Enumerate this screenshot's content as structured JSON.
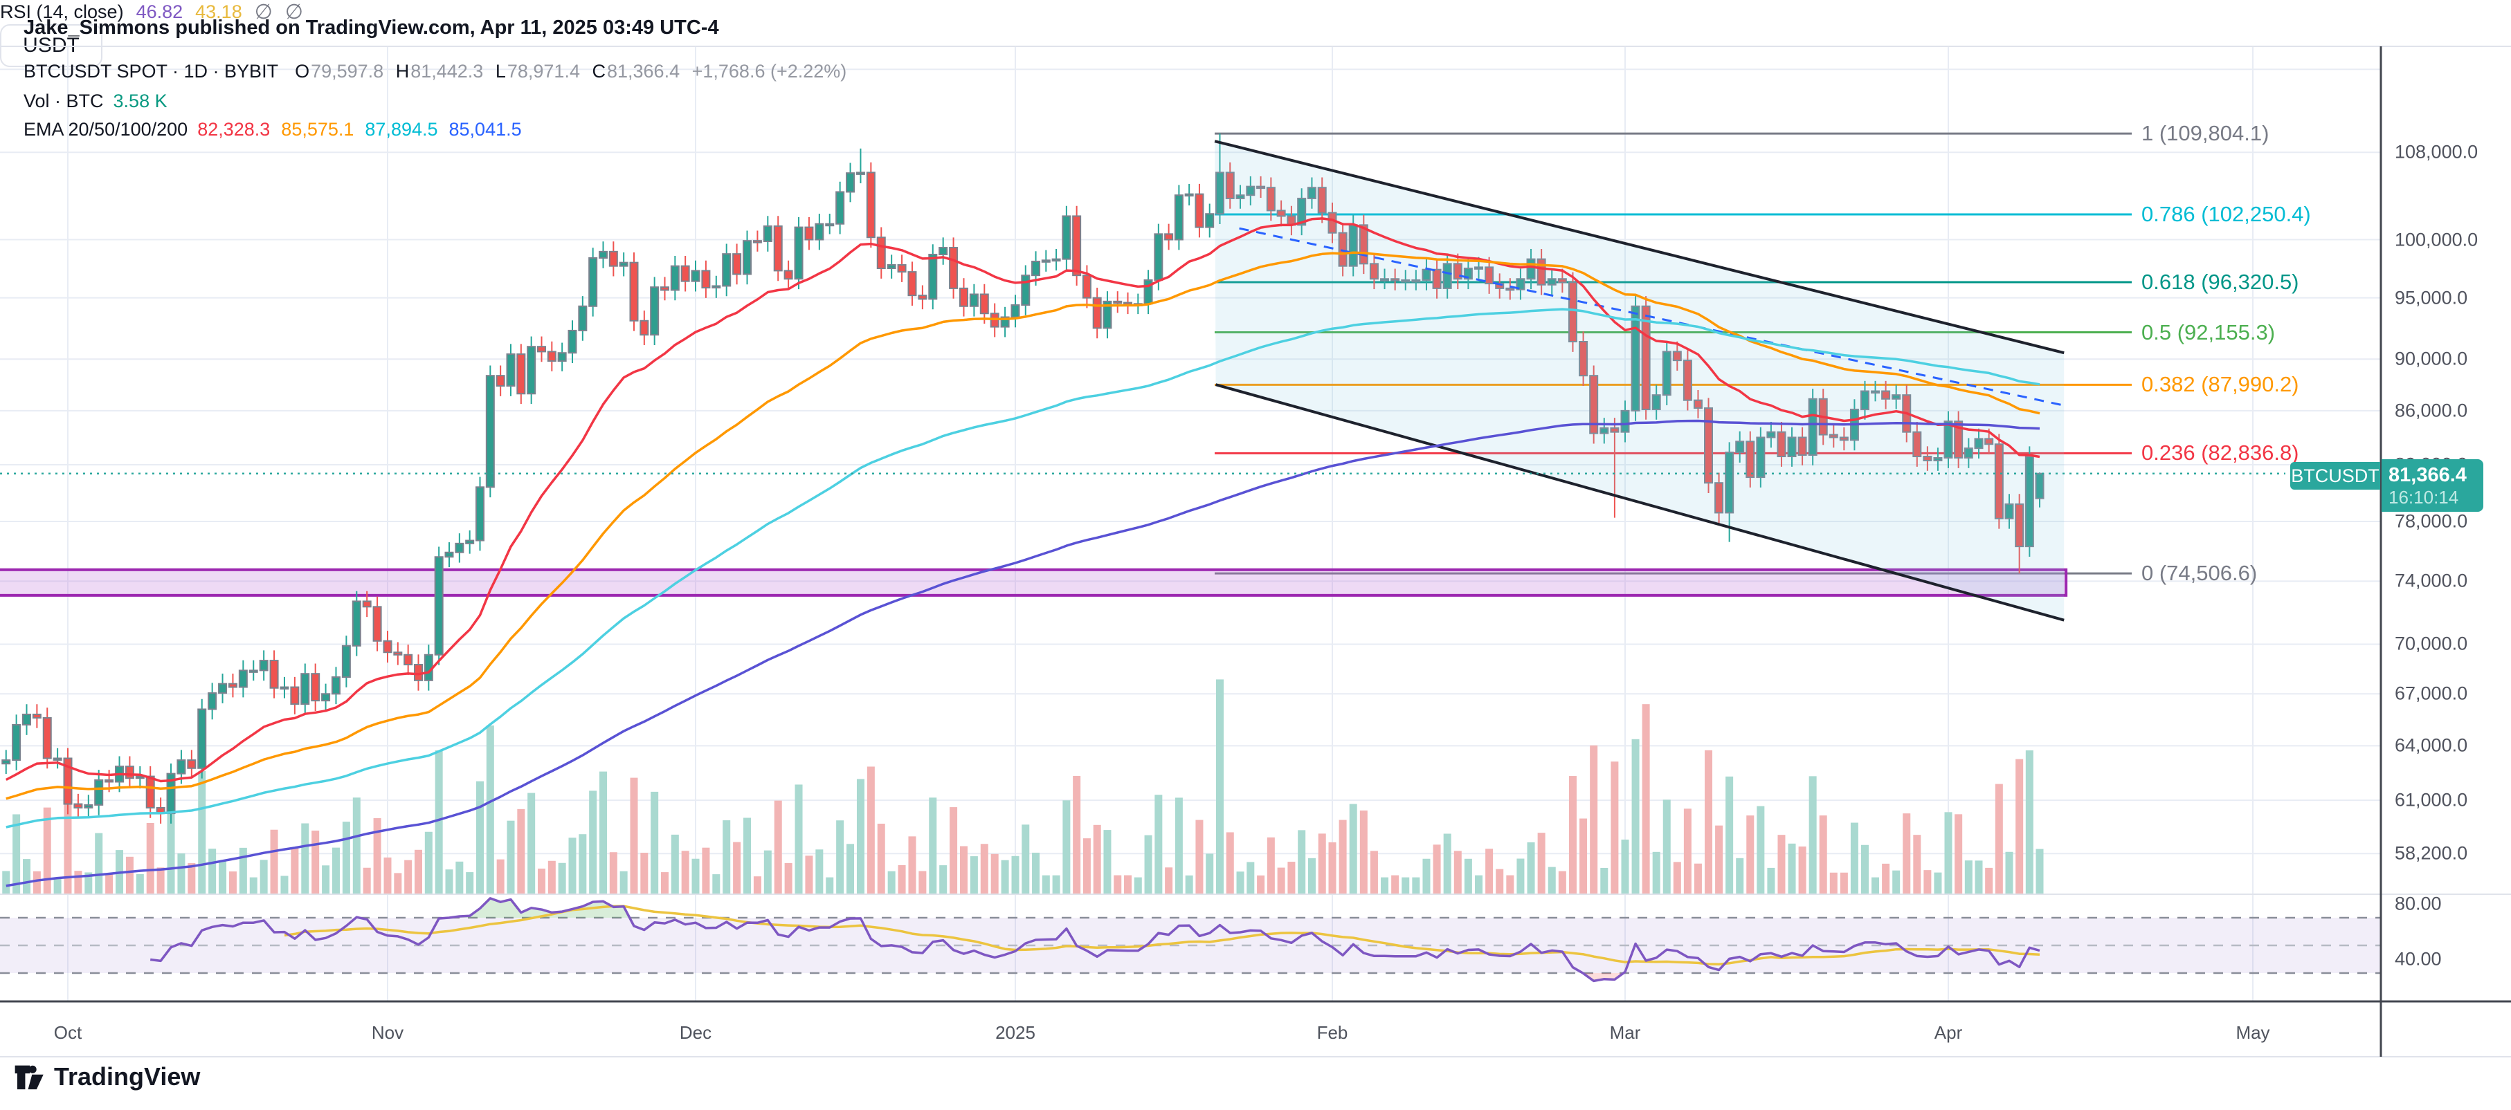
{
  "header": {
    "published_line": "Jake_Simmons published on TradingView.com, Apr 11, 2025 03:49 UTC-4"
  },
  "legend": {
    "symbol_line": "BTCUSDT SPOT · 1D · BYBIT",
    "ohlc": {
      "o_label": "O",
      "o": "79,597.8",
      "h_label": "H",
      "h": "81,442.3",
      "l_label": "L",
      "l": "78,971.4",
      "c_label": "C",
      "c": "81,366.4",
      "change": "+1,768.6 (+2.22%)"
    },
    "volume_label": "Vol · BTC",
    "volume_value": "3.58 K",
    "ema_label": "EMA 20/50/100/200",
    "ema_values": [
      {
        "text": "82,328.3",
        "color": "#f23645"
      },
      {
        "text": "85,575.1",
        "color": "#ff9800"
      },
      {
        "text": "87,894.5",
        "color": "#00bcd4"
      },
      {
        "text": "85,041.5",
        "color": "#2962ff"
      }
    ]
  },
  "rsi_legend": {
    "label": "RSI (14, close)",
    "value": "46.82",
    "ma_value": "43.18",
    "empty1": "∅",
    "empty2": "∅"
  },
  "price_badge": {
    "symbol": "BTCUSDT",
    "price": "81,366.4",
    "countdown": "16:10:14",
    "color": "#2aa79d"
  },
  "price_axis": {
    "currency": "USDT",
    "ticks": [
      {
        "label": "108,000.0",
        "p_k": 108
      },
      {
        "label": "100,000.0",
        "p_k": 100
      },
      {
        "label": "95,000.0",
        "p_k": 95
      },
      {
        "label": "90,000.0",
        "p_k": 90
      },
      {
        "label": "86,000.0",
        "p_k": 86
      },
      {
        "label": "82,000.0",
        "p_k": 82
      },
      {
        "label": "78,000.0",
        "p_k": 78
      },
      {
        "label": "74,000.0",
        "p_k": 74
      },
      {
        "label": "70,000.0",
        "p_k": 70
      },
      {
        "label": "67,000.0",
        "p_k": 67
      },
      {
        "label": "64,000.0",
        "p_k": 64
      },
      {
        "label": "61,000.0",
        "p_k": 61
      },
      {
        "label": "58,200.0",
        "p_k": 58.2
      }
    ],
    "unlabeled_grid_k": [
      116.2
    ],
    "rsi_ticks": [
      {
        "label": "80.00",
        "v": 80
      },
      {
        "label": "40.00",
        "v": 40
      }
    ]
  },
  "time_axis": {
    "labels": [
      {
        "label": "Oct",
        "d": 0
      },
      {
        "label": "Nov",
        "d": 31
      },
      {
        "label": "Dec",
        "d": 61
      },
      {
        "label": "2025",
        "d": 92
      },
      {
        "label": "Feb",
        "d": 123
      },
      {
        "label": "Mar",
        "d": 151
      },
      {
        "label": "Apr",
        "d": 182
      },
      {
        "label": "May",
        "d": 212
      }
    ]
  },
  "footer": {
    "brand": "TradingView"
  },
  "chart_data": {
    "type": "candlestick",
    "symbol": "BTCUSDT",
    "market": "SPOT",
    "interval": "1D",
    "exchange": "BYBIT",
    "scale": "log",
    "ohlc_current": {
      "open": 79597.8,
      "high": 81442.3,
      "low": 78971.4,
      "close": 81366.4,
      "change": 1768.6,
      "change_pct": 2.22
    },
    "style": {
      "up": "#2f9e8f",
      "down": "#ef5350",
      "border": "#7b828e",
      "wick_up": "#26a69a",
      "wick_down": "#ef5350",
      "vol_up": "#a9d9d0",
      "vol_down": "#f2b4b4"
    },
    "first_open_k": 63.0,
    "closes_k": [
      63.2,
      65.2,
      65.8,
      65.6,
      63.3,
      63.3,
      60.8,
      60.6,
      60.75,
      62.1,
      62.0,
      62.85,
      62.2,
      62.3,
      60.6,
      60.3,
      62.45,
      63.2,
      62.75,
      66.1,
      67.05,
      67.6,
      67.4,
      68.4,
      68.4,
      69.0,
      67.35,
      67.4,
      66.4,
      68.2,
      66.6,
      67.0,
      68.0,
      69.9,
      72.7,
      72.35,
      70.2,
      69.5,
      69.35,
      68.75,
      67.8,
      69.35,
      75.6,
      75.9,
      76.5,
      76.7,
      80.4,
      88.7,
      87.9,
      90.4,
      87.3,
      91.0,
      90.6,
      89.85,
      90.5,
      92.3,
      94.3,
      98.4,
      98.95,
      97.7,
      98.0,
      93.1,
      91.95,
      95.9,
      95.65,
      97.7,
      96.4,
      97.3,
      95.85,
      96.0,
      98.75,
      97.0,
      99.9,
      99.85,
      101.2,
      97.3,
      96.6,
      101.1,
      100.0,
      101.4,
      101.4,
      104.3,
      106.05,
      106.1,
      100.2,
      97.5,
      97.8,
      97.2,
      95.2,
      94.9,
      98.7,
      99.3,
      95.8,
      94.3,
      95.3,
      93.7,
      92.6,
      93.4,
      94.4,
      96.9,
      98.1,
      98.2,
      98.3,
      102.1,
      96.9,
      95.0,
      92.5,
      94.7,
      94.6,
      94.5,
      94.5,
      96.5,
      100.5,
      100.0,
      104.0,
      104.1,
      101.1,
      102.3,
      106.1,
      103.7,
      104.0,
      104.8,
      104.7,
      102.6,
      102.1,
      101.3,
      103.7,
      104.7,
      102.4,
      100.6,
      97.7,
      101.3,
      97.9,
      96.6,
      96.6,
      96.5,
      96.5,
      96.5,
      97.4,
      95.8,
      97.9,
      96.6,
      97.5,
      97.6,
      96.2,
      95.8,
      95.7,
      96.6,
      98.3,
      96.1,
      96.6,
      96.3,
      91.4,
      88.7,
      84.3,
      84.7,
      84.4,
      86.0,
      94.3,
      86.1,
      87.2,
      90.6,
      89.9,
      86.8,
      86.2,
      80.7,
      78.6,
      82.9,
      83.7,
      81.1,
      84.0,
      84.4,
      82.6,
      84.0,
      82.7,
      86.9,
      84.2,
      84.0,
      83.8,
      86.1,
      87.5,
      87.5,
      86.9,
      87.2,
      84.4,
      82.6,
      82.3,
      82.5,
      85.2,
      82.5,
      83.2,
      83.9,
      83.5,
      78.2,
      79.2,
      76.3,
      82.6,
      81.366
    ],
    "candle_overrides": {
      "83": {
        "h": 108.365
      },
      "118": {
        "h": 109.804
      },
      "156": {
        "l": 78.258
      },
      "167": {
        "l": 76.606
      },
      "195": {
        "l": 74.507
      },
      "197": {
        "o": 79.598,
        "h": 81.442,
        "l": 78.971
      }
    },
    "wick_pct": {
      "high": 0.009,
      "low": 0.009
    },
    "volume": {
      "base_k": 1.3,
      "impulse_k": 160,
      "current_k": 3.58,
      "overrides": {
        "42": 11.5,
        "47": 13.5,
        "58": 9.8,
        "83": 9.2,
        "118": 17.2,
        "154": 11.9,
        "156": 10.6,
        "158": 12.4,
        "167": 9.4,
        "193": 8.8,
        "195": 10.8,
        "196": 11.5,
        "197": 3.58
      }
    },
    "emas": [
      {
        "period": 20,
        "seed_k": 62.0,
        "color": "#f23645",
        "value": 82328.3
      },
      {
        "period": 50,
        "seed_k": 61.0,
        "color": "#ff9800",
        "value": 85575.1
      },
      {
        "period": 100,
        "seed_k": 59.5,
        "color": "#4dd0e1",
        "value": 87894.5
      },
      {
        "period": 200,
        "seed_k": 56.5,
        "color": "#5952d4",
        "value": 85041.5
      }
    ],
    "rsi": {
      "period": 14,
      "ma_period": 14,
      "value": 46.82,
      "ma_value": 43.18,
      "color": "#7e57c2",
      "ma_color": "#ecc440",
      "bands": [
        70,
        50,
        30
      ],
      "over_fill": "rgba(76,175,80,0.22)",
      "under_fill": "rgba(244,67,54,0.18)",
      "band_fill": "rgba(126,87,194,0.10)"
    },
    "fib_levels": [
      {
        "ratio": 1,
        "price": 109804.1,
        "p_k": 109.8041,
        "label": "1 (109,804.1)",
        "color": "#787b86"
      },
      {
        "ratio": 0.786,
        "price": 102250.4,
        "p_k": 102.2504,
        "label": "0.786 (102,250.4)",
        "color": "#00bcd4"
      },
      {
        "ratio": 0.618,
        "price": 96320.5,
        "p_k": 96.3205,
        "label": "0.618 (96,320.5)",
        "color": "#009688"
      },
      {
        "ratio": 0.5,
        "price": 92155.3,
        "p_k": 92.1553,
        "label": "0.5 (92,155.3)",
        "color": "#4caf50"
      },
      {
        "ratio": 0.382,
        "price": 87990.2,
        "p_k": 87.9902,
        "label": "0.382 (87,990.2)",
        "color": "#ff9800"
      },
      {
        "ratio": 0.236,
        "price": 82836.8,
        "p_k": 82.8368,
        "label": "0.236 (82,836.8)",
        "color": "#f23645"
      },
      {
        "ratio": 0,
        "price": 74506.6,
        "p_k": 74.5066,
        "label": "0 (74,506.6)",
        "color": "#787b86"
      }
    ],
    "channel": {
      "fill": "rgba(128,196,226,0.16)",
      "line_color": "#1e222d",
      "upper": [
        {
          "d": 111.5,
          "p_k": 109.07
        },
        {
          "d": 193.4,
          "p_k": 90.5
        }
      ],
      "lower": [
        {
          "d": 111.6,
          "p_k": 88.0
        },
        {
          "d": 193.4,
          "p_k": 71.5
        }
      ],
      "inner_dashed": {
        "color": "#2962ff",
        "from": {
          "d": 113.9,
          "p_k": 101.0
        },
        "to": {
          "d": 193.1,
          "p_k": 86.45
        }
      }
    },
    "support_band": {
      "top_k": 74.75,
      "bottom_k": 73.08,
      "from_d": -6.9,
      "to_d": 193.6,
      "fill": "rgba(187,107,217,0.25)",
      "border": "#9c27b0"
    },
    "price_line": {
      "value_k": 81.3664,
      "color": "#2aa79d"
    }
  }
}
